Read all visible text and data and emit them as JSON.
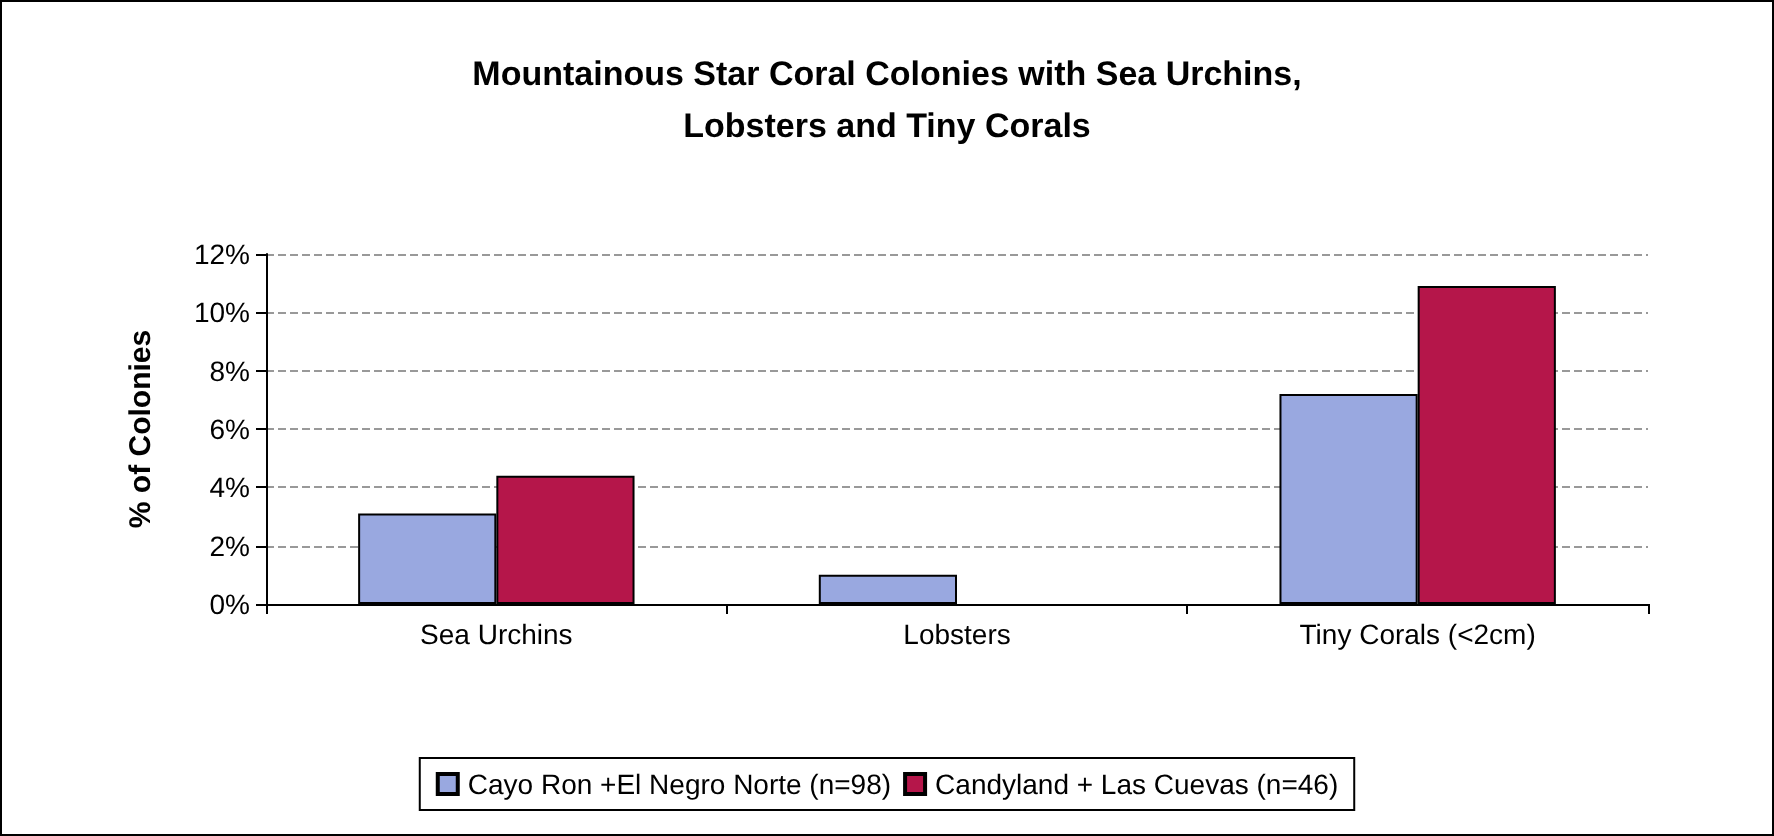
{
  "chart_data": {
    "type": "bar",
    "title": "Mountainous Star Coral Colonies with Sea Urchins,\nLobsters and Tiny Corals",
    "ylabel": "% of Colonies",
    "categories": [
      "Sea Urchins",
      "Lobsters",
      "Tiny Corals (<2cm)"
    ],
    "series": [
      {
        "name": "Cayo Ron +El Negro Norte (n=98)",
        "color": "#99a8e0",
        "values": [
          3.1,
          1.0,
          7.2
        ]
      },
      {
        "name": "Candyland + Las Cuevas (n=46)",
        "color": "#b5164a",
        "values": [
          4.4,
          0,
          10.9
        ]
      }
    ],
    "ylim": [
      0,
      12
    ],
    "yticks": [
      {
        "value": 0,
        "label": "0%"
      },
      {
        "value": 2,
        "label": "2%"
      },
      {
        "value": 4,
        "label": "4%"
      },
      {
        "value": 6,
        "label": "6%"
      },
      {
        "value": 8,
        "label": "8%"
      },
      {
        "value": 10,
        "label": "10%"
      },
      {
        "value": 12,
        "label": "12%"
      }
    ],
    "grid": "y",
    "legend": "bottom"
  }
}
